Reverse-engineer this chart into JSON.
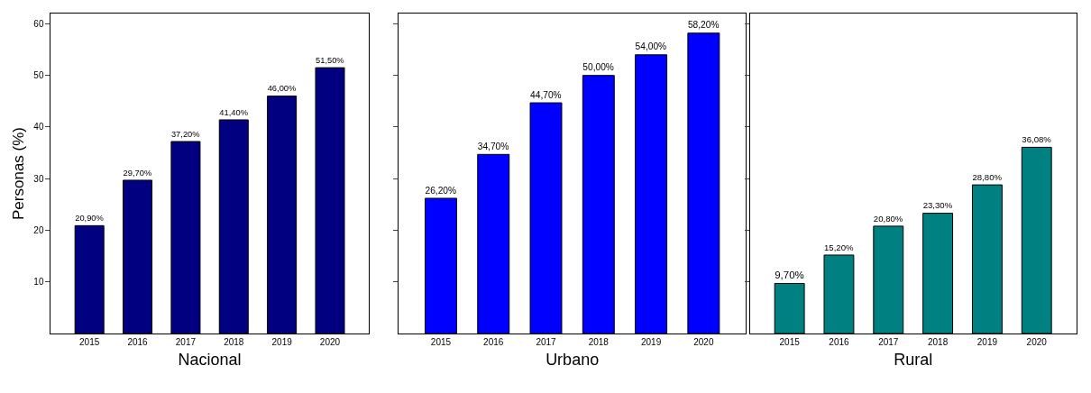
{
  "chart_data": [
    {
      "type": "bar",
      "xlabel": "Nacional",
      "ylabel": "Personas (%)",
      "categories": [
        "2015",
        "2016",
        "2017",
        "2018",
        "2019",
        "2020"
      ],
      "values": [
        20.9,
        29.7,
        37.2,
        41.4,
        46.0,
        51.5
      ],
      "value_labels": [
        "20,90%",
        "29,70%",
        "37,20%",
        "41,40%",
        "46,00%",
        "51,50%"
      ],
      "color": "#000080",
      "ylim": [
        0,
        62
      ],
      "yticks": [
        10,
        20,
        30,
        40,
        50,
        60
      ],
      "grid": false
    },
    {
      "type": "bar",
      "xlabel": "Urbano",
      "categories": [
        "2015",
        "2016",
        "2017",
        "2018",
        "2019",
        "2020"
      ],
      "values": [
        26.2,
        34.7,
        44.7,
        50.0,
        54.0,
        58.2
      ],
      "value_labels": [
        "26,20%",
        "34,70%",
        "44,70%",
        "50,00%",
        "54,00%",
        "58,20%"
      ],
      "color": "#0000ff",
      "ylim": [
        0,
        62
      ],
      "yticks": [
        10,
        20,
        30,
        40,
        50,
        60
      ],
      "tick_labels": "x",
      "grid": false
    },
    {
      "type": "bar",
      "xlabel": "Rural",
      "categories": [
        "2015",
        "2016",
        "2017",
        "2018",
        "2019",
        "2020"
      ],
      "values": [
        9.7,
        15.2,
        20.8,
        23.3,
        28.8,
        36.08
      ],
      "value_labels": [
        "9,70%",
        "15,20%",
        "20,80%",
        "23,30%",
        "28,80%",
        "36,08%"
      ],
      "color": "#008080",
      "ylim": [
        0,
        62
      ],
      "yticks": [
        10,
        20,
        30,
        40,
        50,
        60
      ],
      "tick_labels": "x",
      "grid": false
    }
  ]
}
